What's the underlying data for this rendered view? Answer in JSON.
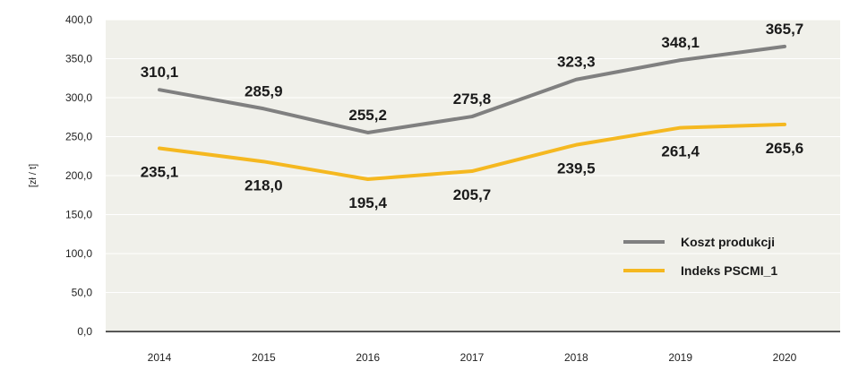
{
  "chart_data": {
    "type": "line",
    "categories": [
      "2014",
      "2015",
      "2016",
      "2017",
      "2018",
      "2019",
      "2020"
    ],
    "series": [
      {
        "name": "Koszt produkcji",
        "color": "#808080",
        "values": [
          310.1,
          285.9,
          255.2,
          275.8,
          323.3,
          348.1,
          365.7
        ],
        "labels": [
          "310,1",
          "285,9",
          "255,2",
          "275,8",
          "323,3",
          "348,1",
          "365,7"
        ]
      },
      {
        "name": "Indeks PSCMI_1",
        "color": "#f5b820",
        "values": [
          235.1,
          218.0,
          195.4,
          205.7,
          239.5,
          261.4,
          265.6
        ],
        "labels": [
          "235,1",
          "218,0",
          "195,4",
          "205,7",
          "239,5",
          "261,4",
          "265,6"
        ]
      }
    ],
    "ylabel": "[zł / t]",
    "xlabel": "",
    "ylim": [
      0,
      400
    ],
    "yticks": [
      "0,0",
      "50,0",
      "100,0",
      "150,0",
      "200,0",
      "250,0",
      "300,0",
      "350,0",
      "400,0"
    ],
    "grid": true,
    "legend": "bottom-right",
    "plot_background": "#f0f0ea"
  }
}
